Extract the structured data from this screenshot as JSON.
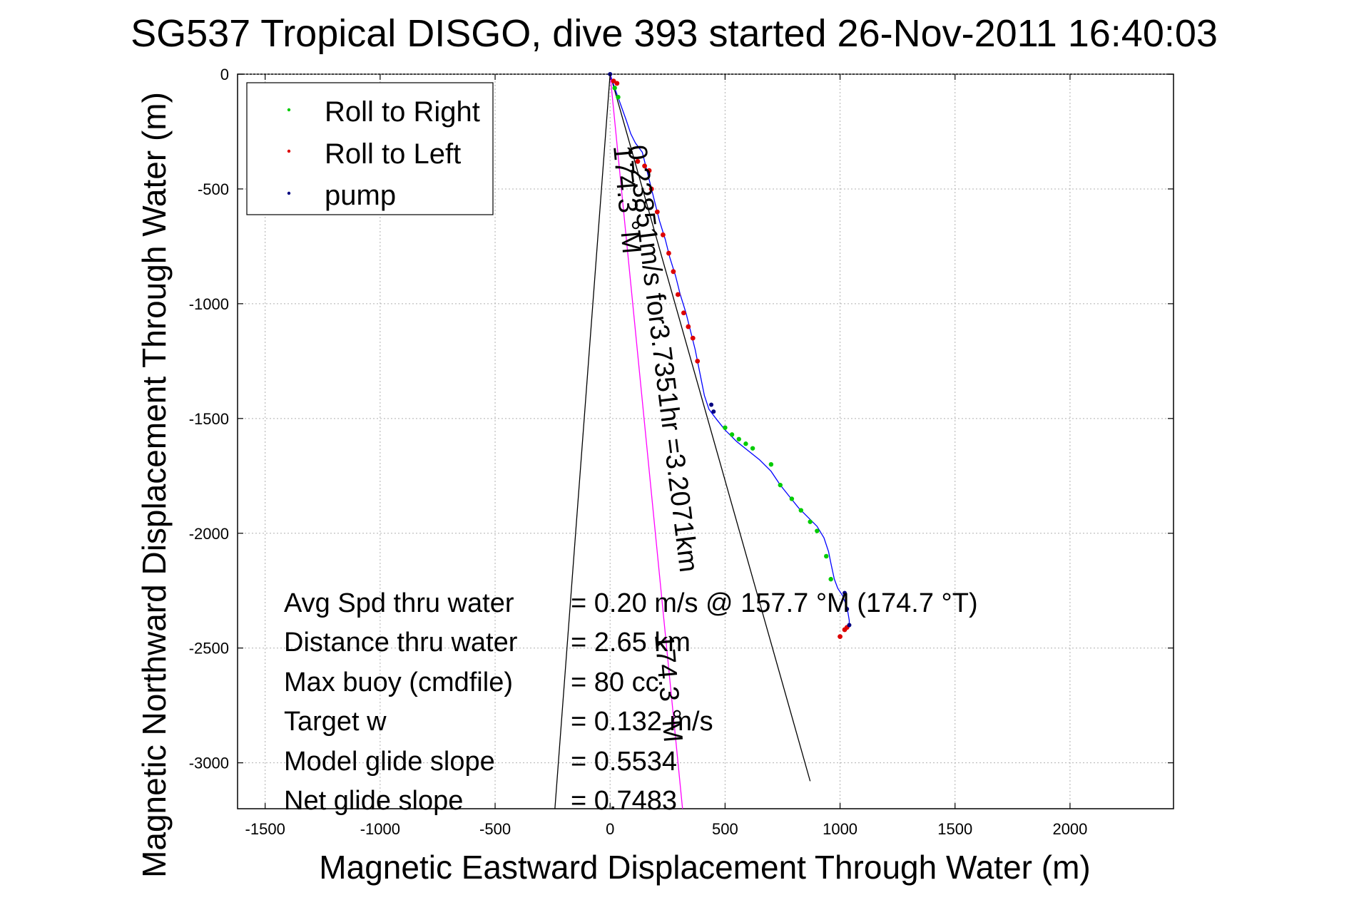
{
  "chart_data": {
    "type": "line",
    "title": "SG537 Tropical DISGO, dive 393 started 26-Nov-2011 16:40:03",
    "xlabel": "Magnetic Eastward Displacement Through Water (m)",
    "ylabel": "Magnetic Northward Displacement Through Water (m)",
    "xlim": [
      -1620,
      2450
    ],
    "ylim": [
      -3200,
      0
    ],
    "xticks": [
      -1500,
      -1000,
      -500,
      0,
      500,
      1000,
      1500,
      2000
    ],
    "yticks": [
      0,
      -500,
      -1000,
      -1500,
      -2000,
      -2500,
      -3000
    ],
    "grid": true,
    "legend": {
      "placement": "top-left",
      "entries": [
        {
          "label": "Roll to Right",
          "color": "#00cc00"
        },
        {
          "label": "Roll to Left",
          "color": "#dd0000"
        },
        {
          "label": "pump",
          "color": "#000080"
        }
      ]
    },
    "series": [
      {
        "role": "track",
        "color": "#0000ff",
        "x": [
          0,
          20,
          45,
          70,
          90,
          110,
          140,
          160,
          175,
          195,
          215,
          240,
          260,
          285,
          305,
          330,
          350,
          370,
          390,
          410,
          430,
          460,
          500,
          550,
          600,
          650,
          700,
          740,
          780,
          820,
          860,
          900,
          930,
          950,
          960,
          975,
          990,
          1010,
          1030,
          1040,
          1040
        ],
        "y": [
          0,
          -60,
          -130,
          -200,
          -260,
          -300,
          -340,
          -420,
          -480,
          -560,
          -640,
          -720,
          -800,
          -880,
          -960,
          -1040,
          -1120,
          -1200,
          -1300,
          -1400,
          -1460,
          -1500,
          -1550,
          -1600,
          -1640,
          -1680,
          -1730,
          -1790,
          -1840,
          -1890,
          -1930,
          -1970,
          -2020,
          -2080,
          -2130,
          -2200,
          -2240,
          -2270,
          -2320,
          -2380,
          -2410
        ]
      },
      {
        "role": "heading-174.3",
        "color": "#ff00ff",
        "x": [
          0,
          315
        ],
        "y": [
          0,
          -3200
        ]
      }
    ],
    "reference_lines": [
      {
        "x": [
          0,
          -240
        ],
        "y": [
          0,
          -3200
        ],
        "color": "#000000"
      },
      {
        "x": [
          0,
          870
        ],
        "y": [
          0,
          -3080
        ],
        "color": "#000000"
      }
    ],
    "roll_right_points": {
      "color": "#00cc00",
      "x": [
        20,
        35,
        500,
        530,
        560,
        590,
        620,
        700,
        740,
        790,
        830,
        870,
        900,
        940,
        960
      ],
      "y": [
        -60,
        -100,
        -1540,
        -1570,
        -1590,
        -1610,
        -1630,
        -1700,
        -1790,
        -1850,
        -1900,
        -1950,
        -1990,
        -2100,
        -2200
      ]
    },
    "roll_left_points": {
      "color": "#dd0000",
      "x": [
        15,
        30,
        120,
        150,
        170,
        180,
        205,
        230,
        255,
        275,
        295,
        320,
        340,
        360,
        380,
        1000,
        1020,
        1030
      ],
      "y": [
        -30,
        -40,
        -380,
        -400,
        -420,
        -500,
        -600,
        -700,
        -780,
        -860,
        -960,
        -1040,
        -1100,
        -1150,
        -1250,
        -2450,
        -2420,
        -2410
      ],
      "count_note": ""
    },
    "pump_points": {
      "color": "#000080",
      "x": [
        0,
        440,
        450,
        1020,
        1030,
        1040
      ],
      "y": [
        0,
        -1440,
        -1470,
        -2260,
        -2330,
        -2400
      ]
    },
    "annotations": {
      "speed_label": "0.23851m/s for3.7351hr =3.2071km",
      "heading_label": "174.3 °M",
      "heading_label2": "174.3 °M",
      "stats": [
        {
          "label": "Avg Spd thru water",
          "value": "=  0.20 m/s @ 157.7 °M (174.7 °T)"
        },
        {
          "label": "Distance thru water",
          "value": "=  2.65 km"
        },
        {
          "label": "Max buoy (cmdfile)",
          "value": "= 80 cc"
        },
        {
          "label": "Target w",
          "value": "= 0.132 m/s"
        },
        {
          "label": "Model glide slope",
          "value": "= 0.5534"
        },
        {
          "label": "Net glide slope",
          "value": "= 0.7483"
        }
      ]
    }
  }
}
